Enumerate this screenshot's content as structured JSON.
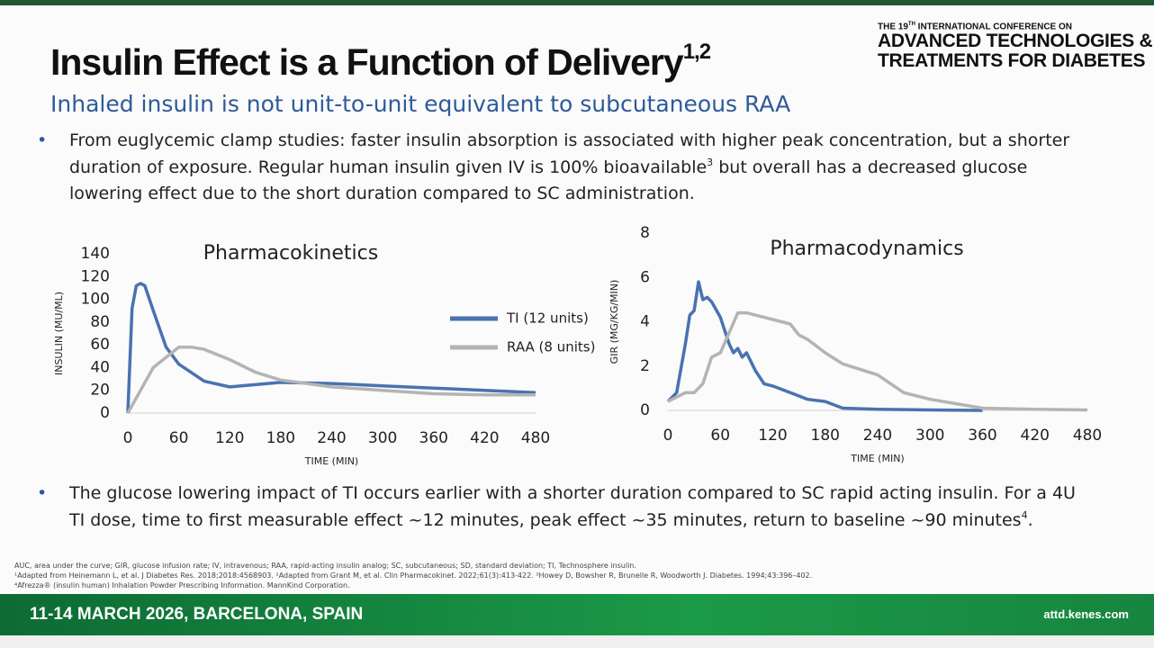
{
  "header": {
    "title": "Insulin Effect is a Function of Delivery",
    "title_sup": "1,2",
    "subtitle": "Inhaled insulin is not unit-to-unit equivalent to subcutaneous RAA"
  },
  "conference": {
    "line1_start": "THE 19",
    "line1_sup": "TH",
    "line1_end": " INTERNATIONAL CONFERENCE ON",
    "name_1": "ADVANCED TECHNOLOGIES &",
    "name_2": "TREATMENTS FOR DIABETES"
  },
  "bullets": [
    [
      "From euglycemic clamp studies: faster insulin absorption is associated with higher peak concentration, but a shorter duration of exposure. Regular human insulin given IV is 100% bioavailable",
      "3",
      " but overall has a decreased glucose lowering effect due to the short duration compared to SC administration."
    ],
    [
      "The glucose lowering impact of TI occurs earlier with a shorter duration compared to SC rapid acting insulin. For a 4U TI dose, time to first measurable effect ~12 minutes, peak effect ~35 minutes, return to baseline ~90 minutes",
      "4",
      "."
    ]
  ],
  "footnotes": [
    "AUC, area under the curve; GIR, glucose infusion rate; IV, intravenous; RAA, rapid-acting insulin analog; SC, subcutaneous; SD, standard deviation; TI, Technosphere insulin.",
    "¹Adapted from Heinemann L, et al. J Diabetes Res. 2018;2018:4568903.  ²Adapted from Grant M, et al. Clin Pharmacokinet. 2022;61(3):413-422.  ³Howey D, Bowsher R, Brunelle R, Woodworth J. Diabetes. 1994;43:396–402.",
    "⁴Afrezza® (insulin human) Inhalation Powder Prescribing Information. MannKind Corporation."
  ],
  "footer": {
    "dates": "11-14 MARCH 2026, BARCELONA, SPAIN",
    "url": "attd.kenes.com"
  },
  "chart_data": [
    {
      "type": "line",
      "title": "Pharmacokinetics",
      "xlabel": "TIME (MIN)",
      "ylabel": "INSULIN (MU/ML)",
      "xlim": [
        0,
        480
      ],
      "ylim": [
        0,
        140
      ],
      "xticks": [
        0,
        60,
        120,
        180,
        240,
        300,
        360,
        420,
        480
      ],
      "yticks": [
        0,
        20,
        40,
        60,
        80,
        100,
        120,
        140
      ],
      "legend": "center-right",
      "series": [
        {
          "name": "TI (12 units)",
          "color": "#4a72b0",
          "x": [
            0,
            5,
            10,
            15,
            20,
            30,
            45,
            60,
            90,
            120,
            180,
            240,
            300,
            360,
            420,
            480
          ],
          "values": [
            0,
            92,
            112,
            114,
            112,
            90,
            58,
            43,
            28,
            23,
            27,
            26,
            24,
            22,
            20,
            18
          ]
        },
        {
          "name": "RAA (8 units)",
          "color": "#b4b4b4",
          "x": [
            0,
            30,
            60,
            75,
            90,
            120,
            150,
            180,
            240,
            300,
            360,
            420,
            480
          ],
          "values": [
            0,
            40,
            58,
            58,
            56,
            47,
            36,
            29,
            23,
            20,
            17,
            16,
            16
          ]
        }
      ]
    },
    {
      "type": "line",
      "title": "Pharmacodynamics",
      "xlabel": "TIME (MIN)",
      "ylabel": "GIR (MG/KG/MIN)",
      "xlim": [
        0,
        480
      ],
      "ylim": [
        0,
        8
      ],
      "xticks": [
        0,
        60,
        120,
        180,
        240,
        300,
        360,
        420,
        480
      ],
      "yticks": [
        0,
        2,
        4,
        6,
        8
      ],
      "series": [
        {
          "color": "#4a72b0",
          "x": [
            0,
            10,
            20,
            25,
            30,
            35,
            40,
            45,
            50,
            60,
            70,
            75,
            80,
            85,
            90,
            100,
            110,
            120,
            140,
            160,
            180,
            200,
            240,
            300,
            360
          ],
          "values": [
            0.4,
            0.8,
            3,
            4.3,
            4.5,
            5.8,
            5,
            5.1,
            4.9,
            4.2,
            3,
            2.6,
            2.8,
            2.4,
            2.6,
            1.8,
            1.2,
            1.1,
            0.8,
            0.5,
            0.4,
            0.1,
            0.05,
            0.02,
            0
          ]
        },
        {
          "color": "#b4b4b4",
          "x": [
            0,
            10,
            20,
            30,
            40,
            50,
            60,
            70,
            80,
            90,
            100,
            120,
            140,
            150,
            160,
            180,
            200,
            240,
            270,
            300,
            330,
            360,
            420,
            480
          ],
          "values": [
            0.4,
            0.6,
            0.8,
            0.8,
            1.2,
            2.4,
            2.6,
            3.5,
            4.4,
            4.4,
            4.3,
            4.1,
            3.9,
            3.4,
            3.2,
            2.6,
            2.1,
            1.6,
            0.8,
            0.5,
            0.3,
            0.1,
            0.05,
            0.02
          ]
        }
      ]
    }
  ]
}
